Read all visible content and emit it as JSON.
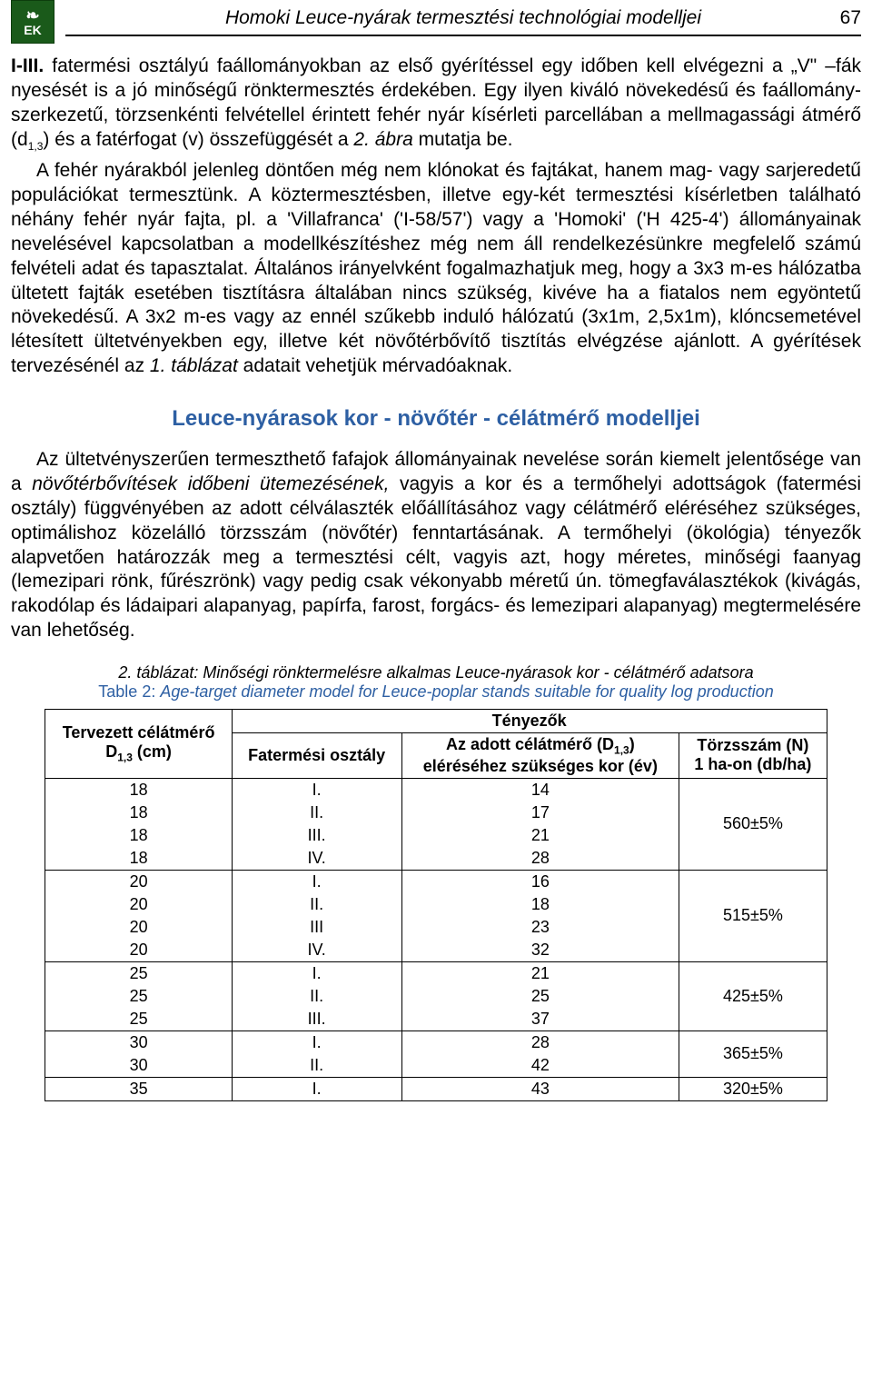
{
  "header": {
    "title": "Homoki Leuce-nyárak termesztési technológiai modelljei",
    "page_number": "67",
    "logo_letters": "EK"
  },
  "paragraphs": {
    "p1_lead": "I-III.",
    "p1_rest": " fatermési osztályú faállományokban az első gyérítéssel egy időben kell elvégezni a „V\" –fák nyesését is a jó minőségű rönktermesztés érdekében. Egy ilyen kiváló növekedésű és faállomány-szerkezetű, törzsenkénti felvétellel érintett fehér nyár kísérleti parcellában a mellmagassági átmérő (d",
    "p1_sub": "1,3",
    "p1_tail": ") és a fatérfogat (v) összefüggését a ",
    "p1_italic": "2. ábra",
    "p1_end": " mutatja be.",
    "p2": "A fehér nyárakból jelenleg döntően még nem klónokat és fajtákat, hanem mag- vagy sarjeredetű populációkat termesztünk. A köztermesztésben, illetve egy-két termesztési kísérletben található néhány fehér nyár fajta, pl. a 'Villafranca' ('I-58/57') vagy a 'Homoki' ('H 425-4') állományainak nevelésével kapcsolatban a modellkészítéshez még nem áll rendelkezésünkre megfelelő számú felvételi adat és tapasztalat. Általános irányelvként fogalmazhatjuk meg, hogy a 3x3 m-es hálózatba ültetett fajták esetében tisztításra általában nincs szükség, kivéve ha a fiatalos nem egyöntetű növekedésű. A 3x2 m-es vagy az ennél szűkebb induló hálózatú (3x1m, 2,5x1m), klóncsemetével létesített ültetvényekben egy, illetve két növőtérbővítő tisztítás elvégzése ajánlott. A gyérítések tervezésénél az ",
    "p2_italic": "1. táblázat",
    "p2_end": " adatait vehetjük mérvadóaknak.",
    "p3": "Az ültetvényszerűen termeszthető fafajok állományainak nevelése során kiemelt jelentősége van a ",
    "p3_italic": "növőtérbővítések időbeni ütemezésének,",
    "p3_rest": " vagyis a kor és a termőhelyi adottságok (fatermési osztály) függvényében az adott célválaszték előállításához vagy célátmérő eléréséhez szükséges, optimálishoz közelálló törzsszám (növőtér) fenntartásának. A termőhelyi (ökológia) tényezők alapvetően határozzák meg a termesztési célt, vagyis azt, hogy méretes, minőségi faanyag (lemezipari rönk, fűrészrönk) vagy pedig csak vékonyabb méretű ún. tömegfaválasztékok (kivágás, rakodólap és ládaipari alapanyag, papírfa, farost, forgács- és lemezipari alapanyag) megtermelésére van lehetőség."
  },
  "section_heading": "Leuce-nyárasok kor - növőtér - célátmérő modelljei",
  "section_heading_color": "#2d5fa3",
  "table": {
    "caption_hu_prefix": "2. táblázat: ",
    "caption_hu": "Minőségi rönktermelésre alkalmas Leuce-nyárasok kor - célátmérő adatsora",
    "caption_en_prefix": "Table 2: ",
    "caption_en": "Age-target diameter model for Leuce-poplar stands suitable for quality log production",
    "head": {
      "col1_line1": "Tervezett célátmérő",
      "col1_line2_pre": "D",
      "col1_line2_sub": "1,3",
      "col1_line2_post": " (cm)",
      "factors": "Tényezők",
      "col2": "Fatermési osztály",
      "col3_line1_pre": "Az adott célátmérő (D",
      "col3_line1_sub": "1,3",
      "col3_line1_post": ")",
      "col3_line2": "eléréséhez szükséges kor (év)",
      "col4_line1": "Törzsszám (N)",
      "col4_line2": "1 ha-on (db/ha)"
    },
    "groups": [
      {
        "rows": [
          {
            "d": "18",
            "cls": "I.",
            "age": "14"
          },
          {
            "d": "18",
            "cls": "II.",
            "age": "17"
          },
          {
            "d": "18",
            "cls": "III.",
            "age": "21"
          },
          {
            "d": "18",
            "cls": "IV.",
            "age": "28"
          }
        ],
        "n": "560±5%"
      },
      {
        "rows": [
          {
            "d": "20",
            "cls": "I.",
            "age": "16"
          },
          {
            "d": "20",
            "cls": "II.",
            "age": "18"
          },
          {
            "d": "20",
            "cls": "III",
            "age": "23"
          },
          {
            "d": "20",
            "cls": "IV.",
            "age": "32"
          }
        ],
        "n": "515±5%"
      },
      {
        "rows": [
          {
            "d": "25",
            "cls": "I.",
            "age": "21"
          },
          {
            "d": "25",
            "cls": "II.",
            "age": "25"
          },
          {
            "d": "25",
            "cls": "III.",
            "age": "37"
          }
        ],
        "n": "425±5%"
      },
      {
        "rows": [
          {
            "d": "30",
            "cls": "I.",
            "age": "28"
          },
          {
            "d": "30",
            "cls": "II.",
            "age": "42"
          }
        ],
        "n": "365±5%"
      },
      {
        "rows": [
          {
            "d": "35",
            "cls": "I.",
            "age": "43"
          }
        ],
        "n": "320±5%"
      }
    ]
  }
}
